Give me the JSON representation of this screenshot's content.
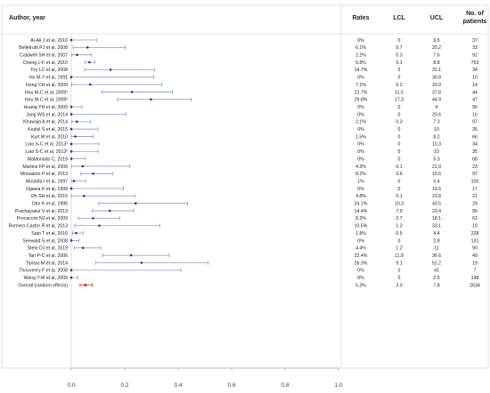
{
  "chart_data": {
    "type": "forest",
    "headers": {
      "study": "Author, year",
      "rates": "Rates",
      "lcl": "LCL",
      "ucl": "UCL",
      "patients": "No. of\npatients"
    },
    "xlim": [
      0,
      1
    ],
    "x_ticks": [
      "0.0",
      "0.2",
      "0.4",
      "0.6",
      "0.8",
      "1.0"
    ],
    "x_tick_values": [
      0,
      0.2,
      0.4,
      0.6,
      0.8,
      1.0
    ],
    "rows": [
      {
        "study": "Al-Ali J et al, 2010",
        "rate": "0%",
        "lcl": "0",
        "ucl": "9.5",
        "n": "37",
        "est": 0.0,
        "lo": 0.0,
        "hi": 0.095
      },
      {
        "study": "Belletrutti PJ et al, 2008",
        "rate": "6.1%",
        "lcl": "0.7",
        "ucl": "20.2",
        "n": "33",
        "est": 0.061,
        "lo": 0.007,
        "hi": 0.202
      },
      {
        "study": "Caldwell SH et al, 2007",
        "rate": "2.2%",
        "lcl": "0.3",
        "ucl": "7.6",
        "n": "92",
        "est": 0.022,
        "lo": 0.003,
        "hi": 0.076
      },
      {
        "study": "Cheng L-F et al, 2010",
        "rate": "6.8%",
        "lcl": "5.1",
        "ucl": "8.8",
        "n": "753",
        "est": 0.068,
        "lo": 0.051,
        "hi": 0.088
      },
      {
        "study": "Fry LC et al, 2008",
        "rate": "14.7%",
        "lcl": "5",
        "ucl": "31.1",
        "n": "34",
        "est": 0.147,
        "lo": 0.05,
        "hi": 0.311
      },
      {
        "study": "Ho M-Y et al, 1991",
        "rate": "0%",
        "lcl": "0",
        "ucl": "30.8",
        "n": "10",
        "est": 0.0,
        "lo": 0.0,
        "hi": 0.308
      },
      {
        "study": "Hong CH et al, 2009",
        "rate": "7.1%",
        "lcl": "0.2",
        "ucl": "33.9",
        "n": "14",
        "est": 0.071,
        "lo": 0.002,
        "hi": 0.339
      },
      {
        "study": "Hou M-C et al, 2009¹",
        "rate": "22.7%",
        "lcl": "11.5",
        "ucl": "37.8",
        "n": "44",
        "est": 0.227,
        "lo": 0.115,
        "hi": 0.378
      },
      {
        "study": "Hou M-C et al, 2009²",
        "rate": "29.8%",
        "lcl": "17.3",
        "ucl": "44.9",
        "n": "47",
        "est": 0.298,
        "lo": 0.173,
        "hi": 0.449
      },
      {
        "study": "Huang YH et al, 2000",
        "rate": "0%",
        "lcl": "0",
        "ucl": "4",
        "n": "90",
        "est": 0.0,
        "lo": 0.0,
        "hi": 0.04
      },
      {
        "study": "Jang WS et al, 2014",
        "rate": "0%",
        "lcl": "0",
        "ucl": "20.6",
        "n": "16",
        "est": 0.0,
        "lo": 0.0,
        "hi": 0.206
      },
      {
        "study": "Khawaja A et al, 2014",
        "rate": "2.1%",
        "lcl": "0.3",
        "ucl": "7.3",
        "n": "97",
        "est": 0.021,
        "lo": 0.003,
        "hi": 0.073
      },
      {
        "study": "Kozlel S et al, 2015",
        "rate": "0%",
        "lcl": "0",
        "ucl": "10",
        "n": "35",
        "est": 0.0,
        "lo": 0.0,
        "hi": 0.1
      },
      {
        "study": "Kurt M et al, 2010",
        "rate": "1.5%",
        "lcl": "0",
        "ucl": "8.2",
        "n": "66",
        "est": 0.015,
        "lo": 0.0,
        "hi": 0.082
      },
      {
        "study": "Liao S-C et al, 2013¹",
        "rate": "0%",
        "lcl": "0",
        "ucl": "10.3",
        "n": "34",
        "est": 0.0,
        "lo": 0.0,
        "hi": 0.103
      },
      {
        "study": "Liao S-C et al, 2013²",
        "rate": "0%",
        "lcl": "0",
        "ucl": "10",
        "n": "35",
        "est": 0.0,
        "lo": 0.0,
        "hi": 0.1
      },
      {
        "study": "Maldonado C, 2019",
        "rate": "0%",
        "lcl": "0",
        "ucl": "5.3",
        "n": "68",
        "est": 0.0,
        "lo": 0.0,
        "hi": 0.053
      },
      {
        "study": "Martins FP et al, 2009",
        "rate": "4.3%",
        "lcl": "0.1",
        "ucl": "21.9",
        "n": "23",
        "est": 0.043,
        "lo": 0.001,
        "hi": 0.219
      },
      {
        "study": "Monsanto P et al, 2013",
        "rate": "8.2%",
        "lcl": "3.6",
        "ucl": "15.6",
        "n": "97",
        "est": 0.082,
        "lo": 0.036,
        "hi": 0.156
      },
      {
        "study": "Mostafa I et al, 1997",
        "rate": "1%",
        "lcl": "0",
        "ucl": "5.4",
        "n": "100",
        "est": 0.01,
        "lo": 0.0,
        "hi": 0.054
      },
      {
        "study": "Ogawa K et al, 1999",
        "rate": "0%",
        "lcl": "0",
        "ucl": "19.5",
        "n": "17",
        "est": 0.0,
        "lo": 0.0,
        "hi": 0.195
      },
      {
        "study": "Oh SH et al, 2015",
        "rate": "4.8%",
        "lcl": "0.1",
        "ucl": "23.8",
        "n": "21",
        "est": 0.048,
        "lo": 0.001,
        "hi": 0.238
      },
      {
        "study": "Oho K et al, 1995",
        "rate": "24.1%",
        "lcl": "10.3",
        "ucl": "43.5",
        "n": "29",
        "est": 0.241,
        "lo": 0.103,
        "hi": 0.435
      },
      {
        "study": "Prachayakul V et al, 2013",
        "rate": "14.4%",
        "lcl": "7.9",
        "ucl": "23.4",
        "n": "90",
        "est": 0.144,
        "lo": 0.079,
        "hi": 0.234
      },
      {
        "study": "Procaccini NJ et al, 2009",
        "rate": "8.2%",
        "lcl": "2.7",
        "ucl": "18.1",
        "n": "61",
        "est": 0.082,
        "lo": 0.027,
        "hi": 0.181
      },
      {
        "study": "Romero-Castro R et al, 2013",
        "rate": "10.5%",
        "lcl": "1.3",
        "ucl": "33.1",
        "n": "19",
        "est": 0.105,
        "lo": 0.013,
        "hi": 0.331
      },
      {
        "study": "Sato T et al, 2016",
        "rate": "1.8%",
        "lcl": "0.5",
        "ucl": "4.4",
        "n": "228",
        "est": 0.018,
        "lo": 0.005,
        "hi": 0.044
      },
      {
        "study": "Seewald S et al, 2008",
        "rate": "0%",
        "lcl": "0",
        "ucl": "2.8",
        "n": "131",
        "est": 0.0,
        "lo": 0.0,
        "hi": 0.028
      },
      {
        "study": "Stein DJ et al, 2019",
        "rate": "4.4%",
        "lcl": "1.2",
        "ucl": "11",
        "n": "90",
        "est": 0.044,
        "lo": 0.012,
        "hi": 0.11
      },
      {
        "study": "Tan P-C et al, 2006",
        "rate": "22.4%",
        "lcl": "11.8",
        "ucl": "36.6",
        "n": "49",
        "est": 0.224,
        "lo": 0.118,
        "hi": 0.366
      },
      {
        "study": "Tantau M et al, 2014",
        "rate": "26.3%",
        "lcl": "9.1",
        "ucl": "51.2",
        "n": "19",
        "est": 0.263,
        "lo": 0.091,
        "hi": 0.512
      },
      {
        "study": "Thouvenry F et al, 2008",
        "rate": "0%",
        "lcl": "0",
        "ucl": "41",
        "n": "7",
        "est": 0.0,
        "lo": 0.0,
        "hi": 0.41
      },
      {
        "study": "Wang Y-M et al, 2009",
        "rate": "0%",
        "lcl": "0",
        "ucl": "2.5",
        "n": "148",
        "est": 0.0,
        "lo": 0.0,
        "hi": 0.025
      },
      {
        "study": "Overall (random effects)",
        "rate": "5.3%",
        "lcl": "3.3",
        "ucl": "7.8",
        "n": "2634",
        "est": 0.053,
        "lo": 0.033,
        "hi": 0.078,
        "overall": true
      }
    ],
    "colors": {
      "ci": "#8a9cc8",
      "point": "#1f3f8f",
      "overall": "#d9362b",
      "line": "#999999"
    }
  }
}
